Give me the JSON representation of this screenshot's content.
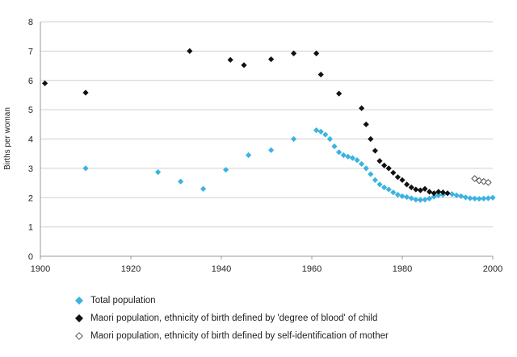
{
  "chart_data": {
    "type": "scatter",
    "title": "",
    "xlabel": "",
    "ylabel": "Births per woman",
    "xlim": [
      1900,
      2000
    ],
    "ylim": [
      0,
      8
    ],
    "x_ticks": [
      1900,
      1920,
      1940,
      1960,
      1980,
      2000
    ],
    "y_ticks": [
      0,
      1,
      2,
      3,
      4,
      5,
      6,
      7,
      8
    ],
    "grid": "horizontal",
    "legend_position": "bottom",
    "series": [
      {
        "name": "Total population",
        "marker": "filled-diamond",
        "color": "#3ab4e0",
        "points": [
          [
            1910,
            3.0
          ],
          [
            1926,
            2.87
          ],
          [
            1931,
            2.55
          ],
          [
            1936,
            2.3
          ],
          [
            1941,
            2.95
          ],
          [
            1946,
            3.45
          ],
          [
            1951,
            3.62
          ],
          [
            1956,
            4.0
          ],
          [
            1961,
            4.3
          ],
          [
            1962,
            4.25
          ],
          [
            1963,
            4.15
          ],
          [
            1964,
            4.0
          ],
          [
            1965,
            3.75
          ],
          [
            1966,
            3.55
          ],
          [
            1967,
            3.45
          ],
          [
            1968,
            3.4
          ],
          [
            1969,
            3.35
          ],
          [
            1970,
            3.28
          ],
          [
            1971,
            3.15
          ],
          [
            1972,
            3.0
          ],
          [
            1973,
            2.8
          ],
          [
            1974,
            2.6
          ],
          [
            1975,
            2.45
          ],
          [
            1976,
            2.35
          ],
          [
            1977,
            2.28
          ],
          [
            1978,
            2.18
          ],
          [
            1979,
            2.1
          ],
          [
            1980,
            2.05
          ],
          [
            1981,
            2.02
          ],
          [
            1982,
            1.98
          ],
          [
            1983,
            1.93
          ],
          [
            1984,
            1.92
          ],
          [
            1985,
            1.93
          ],
          [
            1986,
            1.97
          ],
          [
            1987,
            2.03
          ],
          [
            1988,
            2.08
          ],
          [
            1989,
            2.1
          ],
          [
            1990,
            2.15
          ],
          [
            1991,
            2.12
          ],
          [
            1992,
            2.08
          ],
          [
            1993,
            2.05
          ],
          [
            1994,
            2.01
          ],
          [
            1995,
            1.98
          ],
          [
            1996,
            1.97
          ],
          [
            1997,
            1.96
          ],
          [
            1998,
            1.97
          ],
          [
            1999,
            1.98
          ],
          [
            2000,
            2.0
          ]
        ]
      },
      {
        "name": "Maori population, ethnicity of birth defined by 'degree of blood' of child",
        "marker": "filled-diamond",
        "color": "#111111",
        "points": [
          [
            1901,
            5.9
          ],
          [
            1910,
            5.58
          ],
          [
            1933,
            7.0
          ],
          [
            1942,
            6.7
          ],
          [
            1945,
            6.52
          ],
          [
            1951,
            6.72
          ],
          [
            1956,
            6.92
          ],
          [
            1961,
            6.92
          ],
          [
            1962,
            6.2
          ],
          [
            1966,
            5.55
          ],
          [
            1971,
            5.05
          ],
          [
            1972,
            4.5
          ],
          [
            1973,
            4.0
          ],
          [
            1974,
            3.6
          ],
          [
            1975,
            3.25
          ],
          [
            1976,
            3.1
          ],
          [
            1977,
            3.0
          ],
          [
            1978,
            2.85
          ],
          [
            1979,
            2.7
          ],
          [
            1980,
            2.6
          ],
          [
            1981,
            2.45
          ],
          [
            1982,
            2.35
          ],
          [
            1983,
            2.28
          ],
          [
            1984,
            2.25
          ],
          [
            1985,
            2.3
          ],
          [
            1986,
            2.2
          ],
          [
            1987,
            2.15
          ],
          [
            1988,
            2.2
          ],
          [
            1989,
            2.18
          ],
          [
            1990,
            2.15
          ]
        ]
      },
      {
        "name": "Maori population, ethnicity of birth defined by self-identification of mother",
        "marker": "hollow-diamond",
        "color": "#555555",
        "points": [
          [
            1996,
            2.65
          ],
          [
            1997,
            2.58
          ],
          [
            1998,
            2.55
          ],
          [
            1999,
            2.52
          ]
        ]
      }
    ]
  }
}
